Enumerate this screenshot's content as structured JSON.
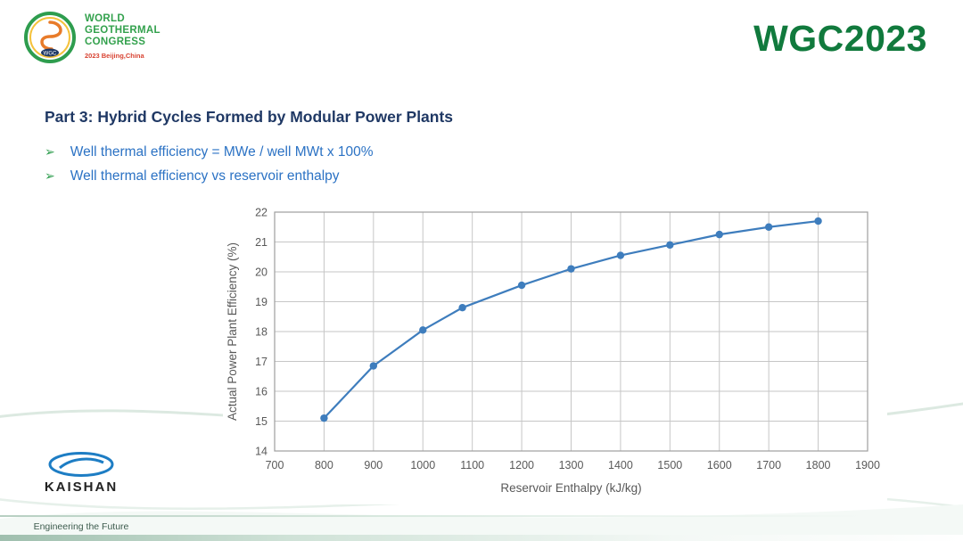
{
  "header": {
    "congress_logo": {
      "line1": "WORLD",
      "line2": "GEOTHERMAL",
      "line3": "CONGRESS",
      "line4": "2023 Beijing,China",
      "badge": "WGC"
    },
    "brand": "WGC2023"
  },
  "slide": {
    "title": "Part 3: Hybrid Cycles Formed by Modular Power Plants",
    "bullets": [
      {
        "marker": "➢",
        "text": "Well thermal efficiency = MWe / well MWt x 100%"
      },
      {
        "marker": "➢",
        "text": "Well thermal efficiency vs reservoir enthalpy"
      }
    ]
  },
  "chart_data": {
    "type": "line",
    "x": [
      800,
      900,
      1000,
      1080,
      1200,
      1300,
      1400,
      1500,
      1600,
      1700,
      1800
    ],
    "y": [
      15.1,
      16.85,
      18.05,
      18.8,
      19.55,
      20.1,
      20.55,
      20.9,
      21.25,
      21.5,
      21.7
    ],
    "xlabel": "Reservoir Enthalpy (kJ/kg)",
    "ylabel": "Actual Power Plant Efficiency (%)",
    "xlim": [
      700,
      1900
    ],
    "ylim": [
      14,
      22
    ],
    "x_ticks": [
      700,
      800,
      900,
      1000,
      1100,
      1200,
      1300,
      1400,
      1500,
      1600,
      1700,
      1800,
      1900
    ],
    "y_ticks": [
      14,
      15,
      16,
      17,
      18,
      19,
      20,
      21,
      22
    ],
    "grid": true,
    "legend": "none",
    "line_color": "#3e7dbd",
    "grid_color": "#c6c6c6",
    "axis_text_color": "#595959",
    "marker": "circle"
  },
  "footer": {
    "kaishan_label": "KAISHAN",
    "tagline": "Engineering the Future"
  }
}
